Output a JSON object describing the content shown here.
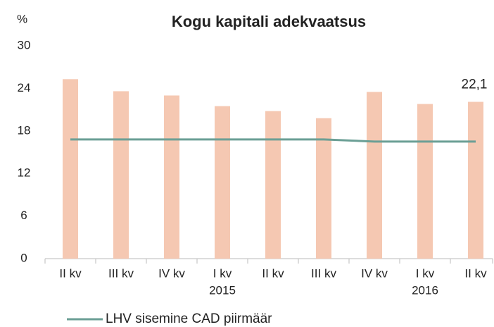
{
  "chart_data": {
    "type": "bar_line",
    "title": "Kogu kapitali adekvaatsus",
    "y_axis_label": "%",
    "categories": [
      "II kv",
      "III kv",
      "IV kv",
      "I kv",
      "II kv",
      "III kv",
      "IV kv",
      "I kv",
      "II kv"
    ],
    "category_sublabels": [
      null,
      null,
      null,
      "2015",
      null,
      null,
      null,
      "2016",
      null
    ],
    "series": [
      {
        "type": "bar",
        "color": "#f5c8b2",
        "values": [
          25.3,
          23.6,
          23.0,
          21.5,
          20.8,
          19.8,
          23.5,
          21.8,
          22.1
        ],
        "value_labels": [
          null,
          null,
          null,
          null,
          null,
          null,
          null,
          null,
          "22,1"
        ]
      },
      {
        "type": "line",
        "name": "LHV sisemine CAD piirmäär",
        "color": "#6b9f95",
        "values": [
          16.8,
          16.8,
          16.8,
          16.8,
          16.8,
          16.8,
          16.5,
          16.5,
          16.5
        ]
      }
    ],
    "ylim": [
      0,
      30
    ],
    "yticks": [
      0,
      6,
      12,
      18,
      24,
      30
    ],
    "legend": "bottom"
  }
}
